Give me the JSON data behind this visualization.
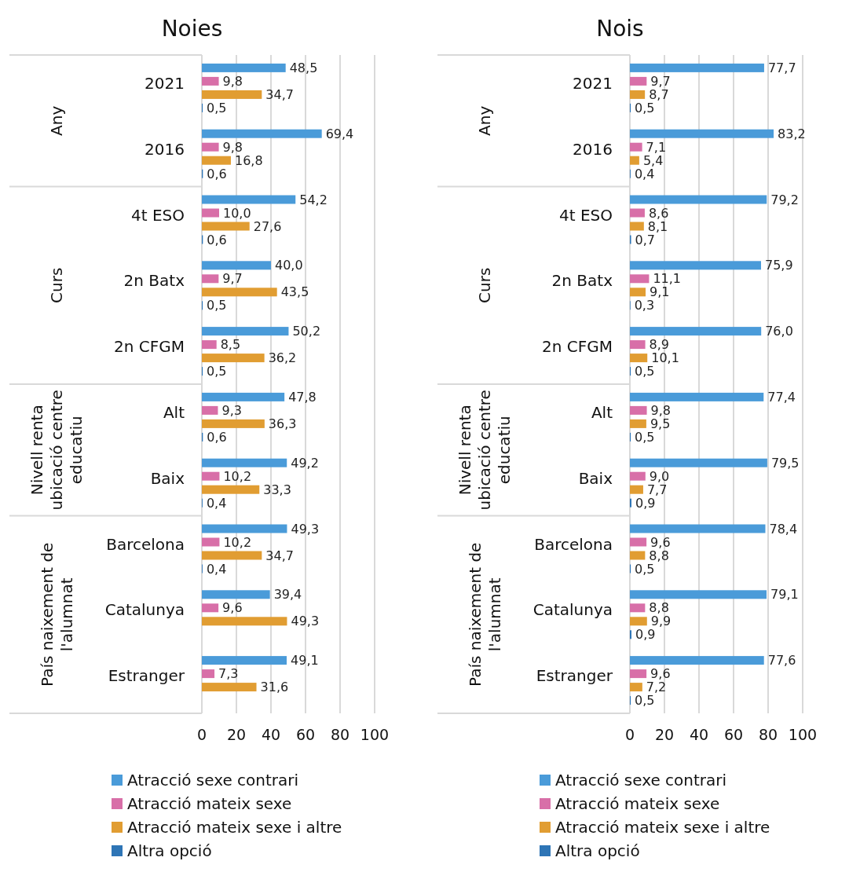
{
  "chart_data": [
    {
      "type": "bar",
      "title": "Noies",
      "orientation": "horizontal",
      "categories": [
        "2021",
        "2016",
        "4t ESO",
        "2n Batx",
        "2n CFGM",
        "Alt",
        "Baix",
        "Barcelona",
        "Catalunya",
        "Estranger"
      ],
      "series": [
        {
          "name": "Atracció sexe contrari",
          "color": "#4a9bd9",
          "values": [
            48.5,
            69.4,
            54.2,
            40.0,
            50.2,
            47.8,
            49.2,
            49.3,
            39.4,
            49.1
          ],
          "value_labels": [
            "48,5",
            "69,4",
            "54,2",
            "40,0",
            "50,2",
            "47,8",
            "49,2",
            "49,3",
            "39,4",
            "49,1"
          ]
        },
        {
          "name": "Atracció mateix sexe",
          "color": "#d86fa8",
          "values": [
            9.8,
            9.8,
            10.0,
            9.7,
            8.5,
            9.3,
            10.2,
            10.2,
            9.6,
            7.3
          ],
          "value_labels": [
            "9,8",
            "9,8",
            "10,0",
            "9,7",
            "8,5",
            "9,3",
            "10,2",
            "10,2",
            "9,6",
            "7,3"
          ]
        },
        {
          "name": "Atracció mateix sexe i altre",
          "color": "#e19d32",
          "values": [
            34.7,
            16.8,
            27.6,
            43.5,
            36.2,
            36.3,
            33.3,
            34.7,
            49.3,
            31.6
          ],
          "value_labels": [
            "34,7",
            "16,8",
            "27,6",
            "43,5",
            "36,2",
            "36,3",
            "33,3",
            "34,7",
            "49,3",
            "31,6"
          ]
        },
        {
          "name": "Altra opció",
          "color": "#2e75b6",
          "values": [
            0.5,
            0.6,
            0.6,
            0.5,
            0.5,
            0.6,
            0.4,
            0.4,
            null,
            null
          ],
          "value_labels": [
            "0,5",
            "0,6",
            "0,6",
            "0,5",
            "0,5",
            "0,6",
            "0,4",
            "0,4",
            null,
            null
          ]
        }
      ],
      "xlim": [
        0,
        100
      ],
      "xticks": [
        0,
        20,
        40,
        60,
        80,
        100
      ],
      "grid": "x",
      "legend": "bottom",
      "annotations": [
        "Any",
        "Curs",
        "Nivell renta ubicació centre educatiu",
        "País naixement de l'alumnat"
      ]
    },
    {
      "type": "bar",
      "title": "Nois",
      "orientation": "horizontal",
      "categories": [
        "2021",
        "2016",
        "4t ESO",
        "2n Batx",
        "2n CFGM",
        "Alt",
        "Baix",
        "Barcelona",
        "Catalunya",
        "Estranger"
      ],
      "series": [
        {
          "name": "Atracció sexe contrari",
          "color": "#4a9bd9",
          "values": [
            77.7,
            83.2,
            79.2,
            75.9,
            76.0,
            77.4,
            79.5,
            78.4,
            79.1,
            77.6
          ],
          "value_labels": [
            "77,7",
            "83,2",
            "79,2",
            "75,9",
            "76,0",
            "77,4",
            "79,5",
            "78,4",
            "79,1",
            "77,6"
          ]
        },
        {
          "name": "Atracció mateix sexe",
          "color": "#d86fa8",
          "values": [
            9.7,
            7.1,
            8.6,
            11.1,
            8.9,
            9.8,
            9.0,
            9.6,
            8.8,
            9.6
          ],
          "value_labels": [
            "9,7",
            "7,1",
            "8,6",
            "11,1",
            "8,9",
            "9,8",
            "9,0",
            "9,6",
            "8,8",
            "9,6"
          ]
        },
        {
          "name": "Atracció mateix sexe i altre",
          "color": "#e19d32",
          "values": [
            8.7,
            5.4,
            8.1,
            9.1,
            10.1,
            9.5,
            7.7,
            8.8,
            9.9,
            7.2
          ],
          "value_labels": [
            "8,7",
            "5,4",
            "8,1",
            "9,1",
            "10,1",
            "9,5",
            "7,7",
            "8,8",
            "9,9",
            "7,2"
          ]
        },
        {
          "name": "Altra opció",
          "color": "#2e75b6",
          "values": [
            0.5,
            0.4,
            0.7,
            0.3,
            0.5,
            0.5,
            0.9,
            0.5,
            0.9,
            0.5
          ],
          "value_labels": [
            "0,5",
            "0,4",
            "0,7",
            "0,3",
            "0,5",
            "0,5",
            "0,9",
            "0,5",
            "0,9",
            "0,5"
          ]
        }
      ],
      "xlim": [
        0,
        100
      ],
      "xticks": [
        0,
        20,
        40,
        60,
        80,
        100
      ],
      "grid": "x",
      "legend": "bottom",
      "annotations": [
        "Any",
        "Curs",
        "Nivell renta ubicació centre educatiu",
        "País naixement de l'alumnat"
      ]
    }
  ]
}
